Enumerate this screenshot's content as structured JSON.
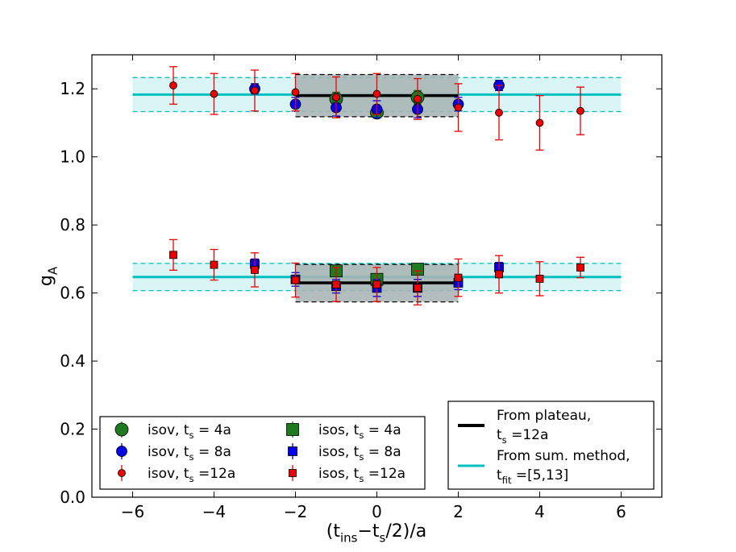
{
  "chart_data": {
    "type": "scatter",
    "title": "",
    "xlabel": "(t_ins−t_s/2)/a",
    "ylabel": "g_A",
    "xlim": [
      -7,
      7
    ],
    "ylim": [
      0.0,
      1.3
    ],
    "x_ticks": [
      -6,
      -4,
      -2,
      0,
      2,
      4,
      6
    ],
    "y_ticks": [
      0.0,
      0.2,
      0.4,
      0.6,
      0.8,
      1.0,
      1.2
    ],
    "x_tick_labels": [
      "−6",
      "−4",
      "−2",
      "0",
      "2",
      "4",
      "6"
    ],
    "y_tick_labels": [
      "0.0",
      "0.2",
      "0.4",
      "0.6",
      "0.8",
      "1.0",
      "1.2"
    ],
    "grid": false,
    "series": [
      {
        "name": "isov, t_s = 4a",
        "marker": "circle",
        "size": "large",
        "color": "#1f7a1f",
        "points": [
          {
            "x": -1,
            "y": 1.17,
            "err": 0.02
          },
          {
            "x": 0,
            "y": 1.13,
            "err": 0.015
          },
          {
            "x": 1,
            "y": 1.175,
            "err": 0.02
          }
        ]
      },
      {
        "name": "isov, t_s = 8a",
        "marker": "circle",
        "size": "medium",
        "color": "#0000ee",
        "points": [
          {
            "x": -3,
            "y": 1.2,
            "err": 0.015
          },
          {
            "x": -2,
            "y": 1.155,
            "err": 0.02
          },
          {
            "x": -1,
            "y": 1.145,
            "err": 0.025
          },
          {
            "x": 0,
            "y": 1.14,
            "err": 0.025
          },
          {
            "x": 1,
            "y": 1.14,
            "err": 0.025
          },
          {
            "x": 2,
            "y": 1.155,
            "err": 0.02
          },
          {
            "x": 3,
            "y": 1.21,
            "err": 0.015
          }
        ]
      },
      {
        "name": "isov, t_s =12a",
        "marker": "circle",
        "size": "small",
        "color": "#ee0000",
        "points": [
          {
            "x": -5,
            "y": 1.21,
            "err": 0.055
          },
          {
            "x": -4,
            "y": 1.185,
            "err": 0.06
          },
          {
            "x": -3,
            "y": 1.195,
            "err": 0.06
          },
          {
            "x": -2,
            "y": 1.19,
            "err": 0.055
          },
          {
            "x": -1,
            "y": 1.175,
            "err": 0.06
          },
          {
            "x": 0,
            "y": 1.185,
            "err": 0.06
          },
          {
            "x": 1,
            "y": 1.17,
            "err": 0.06
          },
          {
            "x": 2,
            "y": 1.145,
            "err": 0.07
          },
          {
            "x": 3,
            "y": 1.13,
            "err": 0.08
          },
          {
            "x": 4,
            "y": 1.1,
            "err": 0.08
          },
          {
            "x": 5,
            "y": 1.135,
            "err": 0.07
          }
        ]
      },
      {
        "name": "isos, t_s = 4a",
        "marker": "square",
        "size": "large",
        "color": "#1f7a1f",
        "points": [
          {
            "x": -1,
            "y": 0.665,
            "err": 0.015
          },
          {
            "x": 0,
            "y": 0.64,
            "err": 0.015
          },
          {
            "x": 1,
            "y": 0.67,
            "err": 0.015
          }
        ]
      },
      {
        "name": "isos, t_s = 8a",
        "marker": "square",
        "size": "medium",
        "color": "#0000ee",
        "points": [
          {
            "x": -3,
            "y": 0.685,
            "err": 0.015
          },
          {
            "x": -2,
            "y": 0.64,
            "err": 0.02
          },
          {
            "x": -1,
            "y": 0.62,
            "err": 0.02
          },
          {
            "x": 0,
            "y": 0.615,
            "err": 0.025
          },
          {
            "x": 1,
            "y": 0.615,
            "err": 0.025
          },
          {
            "x": 2,
            "y": 0.63,
            "err": 0.02
          },
          {
            "x": 3,
            "y": 0.675,
            "err": 0.015
          }
        ]
      },
      {
        "name": "isos, t_s =12a",
        "marker": "square",
        "size": "small",
        "color": "#ee0000",
        "points": [
          {
            "x": -5,
            "y": 0.712,
            "err": 0.045
          },
          {
            "x": -4,
            "y": 0.683,
            "err": 0.045
          },
          {
            "x": -3,
            "y": 0.668,
            "err": 0.05
          },
          {
            "x": -2,
            "y": 0.638,
            "err": 0.05
          },
          {
            "x": -1,
            "y": 0.625,
            "err": 0.05
          },
          {
            "x": 0,
            "y": 0.625,
            "err": 0.05
          },
          {
            "x": 1,
            "y": 0.615,
            "err": 0.05
          },
          {
            "x": 2,
            "y": 0.645,
            "err": 0.055
          },
          {
            "x": 3,
            "y": 0.655,
            "err": 0.055
          },
          {
            "x": 4,
            "y": 0.642,
            "err": 0.05
          },
          {
            "x": 5,
            "y": 0.675,
            "err": 0.03
          }
        ]
      }
    ],
    "bands": [
      {
        "name": "sum-method-upper",
        "type": "sum_method",
        "color": "#00bfbf",
        "fill": "#d9f5f5",
        "center": 1.183,
        "low": 1.133,
        "high": 1.233,
        "x_range": [
          -6,
          6
        ]
      },
      {
        "name": "sum-method-lower",
        "type": "sum_method",
        "color": "#00bfbf",
        "fill": "#d9f5f5",
        "center": 0.647,
        "low": 0.607,
        "high": 0.687,
        "x_range": [
          -6,
          6
        ]
      },
      {
        "name": "plateau-upper",
        "type": "plateau",
        "color": "#000000",
        "fill": "#a8b4b4",
        "center": 1.18,
        "low": 1.118,
        "high": 1.242,
        "x_range": [
          -2,
          2
        ]
      },
      {
        "name": "plateau-lower",
        "type": "plateau",
        "color": "#000000",
        "fill": "#a8b4b4",
        "center": 0.63,
        "low": 0.574,
        "high": 0.684,
        "x_range": [
          -2,
          2
        ]
      }
    ],
    "legend_points": {
      "placement": "lower-left",
      "entries": [
        {
          "label": "isov, t_s = 4a",
          "series": 0
        },
        {
          "label": "isov, t_s = 8a",
          "series": 1
        },
        {
          "label": "isov, t_s =12a",
          "series": 2
        },
        {
          "label": "isos, t_s = 4a",
          "series": 3
        },
        {
          "label": "isos, t_s = 8a",
          "series": 4
        },
        {
          "label": "isos, t_s =12a",
          "series": 5
        }
      ]
    },
    "legend_lines": {
      "placement": "lower-right",
      "entries": [
        {
          "line1": "From plateau,",
          "line2": "t_s =12a",
          "color": "#000000"
        },
        {
          "line1": "From sum. method,",
          "line2": "t_fit =[5,13]",
          "color": "#00bfbf"
        }
      ]
    }
  }
}
